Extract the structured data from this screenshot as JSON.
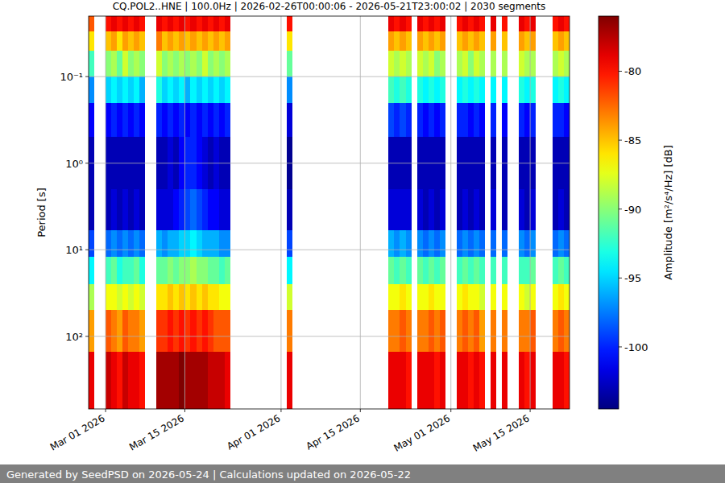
{
  "chart_data": {
    "type": "heatmap",
    "title": "CQ.POL2..HNE | 100.0Hz | 2026-02-26T00:00:06 - 2026-05-21T23:00:02 | 2030 segments",
    "y_label": "Period [s]",
    "footer": "Generated by SeedPSD on 2026-05-24 | Calculations updated on 2026-05-22",
    "log": "y",
    "grid": true,
    "xlim": [
      "2026-02-26T00:00",
      "2026-05-21T23:00"
    ],
    "xticks": [
      {
        "value": "2026-03-01",
        "label": "Mar 01 2026"
      },
      {
        "value": "2026-03-15",
        "label": "Mar 15 2026"
      },
      {
        "value": "2026-04-01",
        "label": "Apr 01 2026"
      },
      {
        "value": "2026-04-15",
        "label": "Apr 15 2026"
      },
      {
        "value": "2026-05-01",
        "label": "May 01 2026"
      },
      {
        "value": "2026-05-15",
        "label": "May 15 2026"
      }
    ],
    "ylim": [
      0.02,
      690
    ],
    "yticks": [
      {
        "value": 0.1,
        "label": "10⁻¹"
      },
      {
        "value": 1,
        "label": "10⁰"
      },
      {
        "value": 10,
        "label": "10¹"
      },
      {
        "value": 100,
        "label": "10²"
      }
    ],
    "period_edges": [
      0.02,
      0.03,
      0.05,
      0.1,
      0.2,
      0.5,
      2,
      6,
      12,
      25,
      50,
      150,
      690
    ],
    "x": [
      "2026-02-26",
      "2026-02-27",
      "2026-02-28",
      "2026-03-01",
      "2026-03-02",
      "2026-03-03",
      "2026-03-04",
      "2026-03-05",
      "2026-03-06",
      "2026-03-07",
      "2026-03-08",
      "2026-03-09",
      "2026-03-10",
      "2026-03-11",
      "2026-03-12",
      "2026-03-13",
      "2026-03-14",
      "2026-03-15",
      "2026-03-16",
      "2026-03-17",
      "2026-03-18",
      "2026-03-19",
      "2026-03-20",
      "2026-03-21",
      "2026-03-22",
      "2026-03-23",
      "2026-03-24",
      "2026-03-25",
      "2026-03-26",
      "2026-03-27",
      "2026-03-28",
      "2026-03-29",
      "2026-03-30",
      "2026-03-31",
      "2026-04-01",
      "2026-04-02",
      "2026-04-03",
      "2026-04-04",
      "2026-04-05",
      "2026-04-06",
      "2026-04-07",
      "2026-04-08",
      "2026-04-09",
      "2026-04-10",
      "2026-04-11",
      "2026-04-12",
      "2026-04-13",
      "2026-04-14",
      "2026-04-15",
      "2026-04-16",
      "2026-04-17",
      "2026-04-18",
      "2026-04-19",
      "2026-04-20",
      "2026-04-21",
      "2026-04-22",
      "2026-04-23",
      "2026-04-24",
      "2026-04-25",
      "2026-04-26",
      "2026-04-27",
      "2026-04-28",
      "2026-04-29",
      "2026-04-30",
      "2026-05-01",
      "2026-05-02",
      "2026-05-03",
      "2026-05-04",
      "2026-05-05",
      "2026-05-06",
      "2026-05-07",
      "2026-05-08",
      "2026-05-09",
      "2026-05-10",
      "2026-05-11",
      "2026-05-12",
      "2026-05-13",
      "2026-05-14",
      "2026-05-15",
      "2026-05-16",
      "2026-05-17",
      "2026-05-18",
      "2026-05-19",
      "2026-05-20",
      "2026-05-21"
    ],
    "cells": [
      [
        -82,
        -86,
        -92,
        -97,
        -101,
        -103,
        -103,
        -99,
        -94,
        -89,
        -84,
        -79
      ],
      null,
      null,
      [
        -80,
        -85,
        -90,
        -95,
        -101,
        -103,
        -103,
        -98,
        -92,
        -87,
        -82,
        -78
      ],
      [
        -79,
        -84,
        -89,
        -94,
        -100,
        -103,
        -102,
        -97,
        -91,
        -87,
        -83,
        -79
      ],
      [
        -80,
        -86,
        -91,
        -95,
        -101,
        -103,
        -103,
        -98,
        -93,
        -88,
        -84,
        -80
      ],
      [
        -79,
        -84,
        -88,
        -94,
        -100,
        -103,
        -102,
        -97,
        -92,
        -87,
        -82,
        -78
      ],
      [
        -80,
        -85,
        -90,
        -95,
        -101,
        -103,
        -103,
        -98,
        -92,
        -88,
        -83,
        -79
      ],
      [
        -79,
        -84,
        -89,
        -94,
        -100,
        -103,
        -102,
        -97,
        -91,
        -87,
        -83,
        -79
      ],
      [
        -80,
        -85,
        -90,
        -96,
        -101,
        -103,
        -103,
        -98,
        -93,
        -88,
        -84,
        -80
      ],
      null,
      null,
      [
        -79,
        -83,
        -88,
        -93,
        -100,
        -103,
        -102,
        -96,
        -91,
        -86,
        -81,
        -77
      ],
      [
        -80,
        -85,
        -90,
        -95,
        -101,
        -103,
        -102,
        -97,
        -91,
        -86,
        -81,
        -77
      ],
      [
        -79,
        -84,
        -89,
        -94,
        -100,
        -102,
        -102,
        -96,
        -90,
        -85,
        -80,
        -77
      ],
      [
        -80,
        -85,
        -90,
        -95,
        -101,
        -103,
        -101,
        -96,
        -91,
        -86,
        -81,
        -77
      ],
      [
        -79,
        -84,
        -89,
        -94,
        -100,
        -101,
        -100,
        -95,
        -90,
        -85,
        -80,
        -76
      ],
      [
        -80,
        -85,
        -90,
        -96,
        -101,
        -100,
        -99,
        -95,
        -90,
        -86,
        -81,
        -77
      ],
      [
        -79,
        -84,
        -89,
        -94,
        -100,
        -100,
        -98,
        -94,
        -89,
        -85,
        -80,
        -77
      ],
      [
        -80,
        -85,
        -90,
        -95,
        -101,
        -101,
        -99,
        -95,
        -90,
        -86,
        -81,
        -77
      ],
      [
        -79,
        -84,
        -88,
        -94,
        -100,
        -102,
        -100,
        -96,
        -90,
        -85,
        -80,
        -77
      ],
      [
        -80,
        -85,
        -90,
        -95,
        -101,
        -103,
        -101,
        -96,
        -91,
        -86,
        -81,
        -78
      ],
      [
        -79,
        -84,
        -89,
        -94,
        -100,
        -102,
        -101,
        -96,
        -91,
        -86,
        -82,
        -78
      ],
      [
        -80,
        -85,
        -90,
        -95,
        -101,
        -103,
        -102,
        -97,
        -92,
        -87,
        -82,
        -78
      ],
      [
        -79,
        -84,
        -89,
        -94,
        -100,
        -103,
        -102,
        -97,
        -91,
        -87,
        -82,
        -79
      ],
      null,
      null,
      null,
      null,
      null,
      null,
      null,
      null,
      null,
      null,
      [
        -80,
        -86,
        -91,
        -97,
        -102,
        -104,
        -103,
        -99,
        -94,
        -88,
        -83,
        -79
      ],
      null,
      null,
      null,
      null,
      null,
      null,
      null,
      null,
      null,
      null,
      null,
      null,
      null,
      null,
      null,
      null,
      null,
      [
        -79,
        -84,
        -88,
        -92,
        -99,
        -103,
        -102,
        -96,
        -91,
        -87,
        -83,
        -79
      ],
      [
        -80,
        -85,
        -89,
        -93,
        -100,
        -103,
        -102,
        -97,
        -92,
        -87,
        -83,
        -79
      ],
      [
        -79,
        -84,
        -88,
        -92,
        -99,
        -103,
        -102,
        -96,
        -91,
        -86,
        -82,
        -79
      ],
      [
        -80,
        -85,
        -89,
        -93,
        -100,
        -103,
        -102,
        -97,
        -92,
        -87,
        -83,
        -80
      ],
      null,
      [
        -79,
        -84,
        -88,
        -93,
        -100,
        -103,
        -102,
        -97,
        -91,
        -87,
        -83,
        -79
      ],
      [
        -80,
        -85,
        -89,
        -94,
        -101,
        -103,
        -103,
        -98,
        -92,
        -87,
        -83,
        -79
      ],
      [
        -79,
        -84,
        -88,
        -93,
        -100,
        -103,
        -102,
        -97,
        -91,
        -86,
        -82,
        -79
      ],
      [
        -80,
        -85,
        -90,
        -94,
        -101,
        -103,
        -103,
        -98,
        -92,
        -87,
        -83,
        -80
      ],
      [
        -79,
        -84,
        -89,
        -93,
        -100,
        -103,
        -102,
        -97,
        -91,
        -87,
        -82,
        -79
      ],
      null,
      null,
      [
        -80,
        -85,
        -89,
        -94,
        -100,
        -103,
        -103,
        -98,
        -92,
        -87,
        -83,
        -79
      ],
      [
        -79,
        -84,
        -88,
        -93,
        -100,
        -103,
        -102,
        -97,
        -91,
        -86,
        -82,
        -79
      ],
      [
        -80,
        -85,
        -90,
        -94,
        -101,
        -103,
        -103,
        -98,
        -92,
        -87,
        -83,
        -80
      ],
      [
        -79,
        -84,
        -88,
        -93,
        -100,
        -103,
        -102,
        -97,
        -91,
        -87,
        -82,
        -79
      ],
      [
        -80,
        -85,
        -89,
        -94,
        -101,
        -103,
        -103,
        -98,
        -92,
        -88,
        -84,
        -80
      ],
      null,
      [
        -79,
        -84,
        -89,
        -94,
        -100,
        -103,
        -102,
        -98,
        -92,
        -87,
        -83,
        -79
      ],
      null,
      [
        -80,
        -85,
        -89,
        -94,
        -101,
        -103,
        -103,
        -98,
        -92,
        -87,
        -83,
        -79
      ],
      null,
      null,
      [
        -79,
        -84,
        -88,
        -93,
        -100,
        -103,
        -102,
        -97,
        -92,
        -87,
        -83,
        -79
      ],
      [
        -80,
        -85,
        -89,
        -94,
        -101,
        -103,
        -103,
        -98,
        -92,
        -88,
        -83,
        -80
      ],
      [
        -79,
        -84,
        -89,
        -93,
        -100,
        -103,
        -102,
        -97,
        -91,
        -87,
        -82,
        -79
      ],
      null,
      null,
      null,
      [
        -80,
        -85,
        -89,
        -94,
        -100,
        -103,
        -103,
        -98,
        -92,
        -87,
        -83,
        -79
      ],
      [
        -79,
        -84,
        -88,
        -93,
        -100,
        -103,
        -102,
        -97,
        -91,
        -86,
        -82,
        -79
      ],
      [
        -80,
        -85,
        -89,
        -94,
        -101,
        -103,
        -103,
        -98,
        -92,
        -87,
        -83,
        -80
      ]
    ],
    "colorbar": {
      "label": "Amplitude [m²/s⁴/Hz] [dB]",
      "range": [
        -104.5,
        -76
      ],
      "ticks": [
        -80,
        -85,
        -90,
        -95,
        -100
      ]
    }
  }
}
